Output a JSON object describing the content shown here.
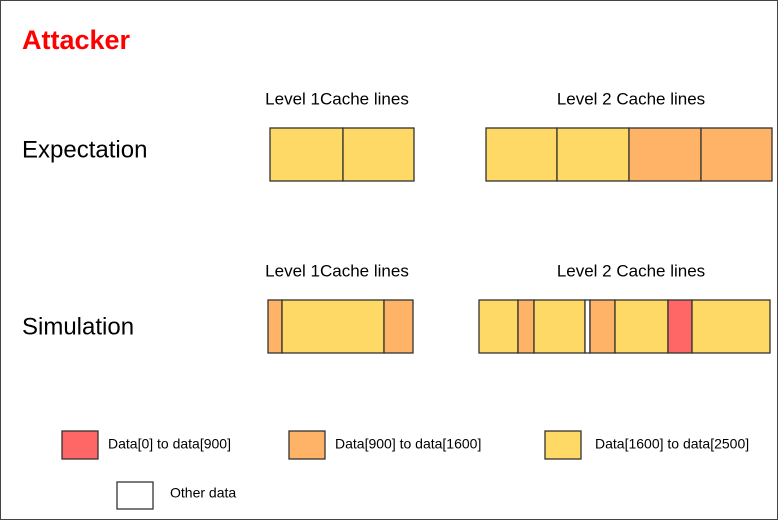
{
  "title": "Attacker",
  "rows": [
    {
      "label": "Expectation",
      "level1_header": "Level 1Cache lines",
      "level2_header": "Level 2 Cache lines"
    },
    {
      "label": "Simulation",
      "level1_header": "Level 1Cache lines",
      "level2_header": "Level 2 Cache lines"
    }
  ],
  "legend": [
    "Data[0] to data[900]",
    "Data[900] to data[1600]",
    "Data[1600] to data[2500]",
    "Other data"
  ]
}
